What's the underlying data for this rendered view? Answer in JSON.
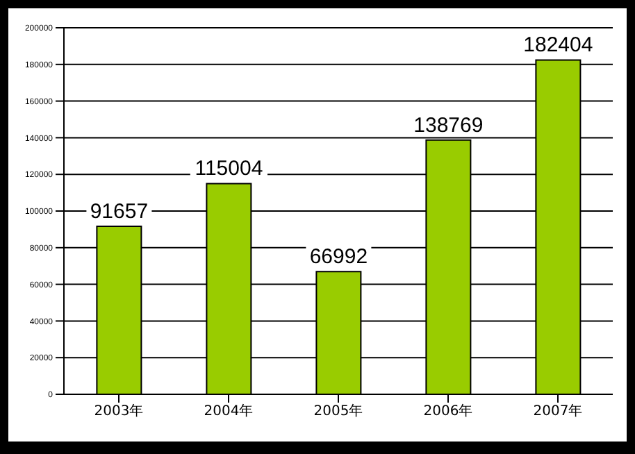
{
  "chart_data": {
    "type": "bar",
    "categories": [
      "2003年",
      "2004年",
      "2005年",
      "2006年",
      "2007年"
    ],
    "values": [
      91657,
      115004,
      66992,
      138769,
      182404
    ],
    "color": "#99cc00",
    "ylim": [
      0,
      200000
    ],
    "yticks": [
      0,
      20000,
      40000,
      60000,
      80000,
      100000,
      120000,
      140000,
      160000,
      180000,
      200000
    ],
    "grid": "y",
    "data_labels": true
  }
}
